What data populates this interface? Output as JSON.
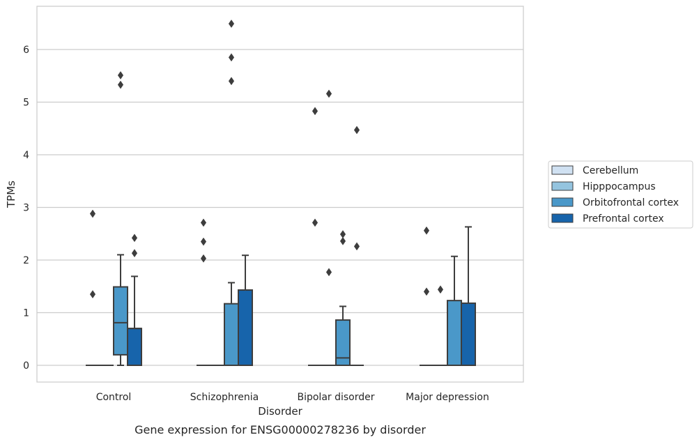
{
  "chart_data": {
    "type": "box",
    "title": "",
    "caption": "Gene expression for ENSG00000278236 by disorder",
    "xlabel": "Disorder",
    "ylabel": "TPMs",
    "ylim": [
      -0.32,
      6.85
    ],
    "yticks": [
      0,
      1,
      2,
      3,
      4,
      5,
      6
    ],
    "grid": "horizontal",
    "legend_position": "right",
    "categories": [
      "Control",
      "Schizophrenia",
      "Bipolar disorder",
      "Major depression"
    ],
    "series": [
      {
        "name": "Cerebellum",
        "color": "#d0e1f2",
        "boxes": [
          {
            "q1": 0,
            "median": 0,
            "q3": 0,
            "whislo": 0,
            "whishi": 0,
            "fliers": [
              1.35,
              2.88
            ]
          },
          {
            "q1": 0,
            "median": 0,
            "q3": 0,
            "whislo": 0,
            "whishi": 0,
            "fliers": [
              2.03,
              2.35,
              2.71
            ]
          },
          {
            "q1": 0,
            "median": 0,
            "q3": 0,
            "whislo": 0,
            "whishi": 0,
            "fliers": [
              2.71,
              4.83
            ]
          },
          {
            "q1": 0,
            "median": 0,
            "q3": 0,
            "whislo": 0,
            "whishi": 0,
            "fliers": [
              1.4,
              2.56
            ]
          }
        ]
      },
      {
        "name": "Hipppocampus",
        "color": "#94c4df",
        "boxes": [
          {
            "q1": 0,
            "median": 0,
            "q3": 0,
            "whislo": 0,
            "whishi": 0,
            "fliers": []
          },
          {
            "q1": 0,
            "median": 0,
            "q3": 0,
            "whislo": 0,
            "whishi": 0,
            "fliers": []
          },
          {
            "q1": 0,
            "median": 0,
            "q3": 0,
            "whislo": 0,
            "whishi": 0,
            "fliers": [
              1.77,
              5.16
            ]
          },
          {
            "q1": 0,
            "median": 0,
            "q3": 0,
            "whislo": 0,
            "whishi": 0,
            "fliers": [
              1.44
            ]
          }
        ]
      },
      {
        "name": "Orbitofrontal cortex",
        "color": "#4a98c9",
        "boxes": [
          {
            "q1": 0.2,
            "median": 0.81,
            "q3": 1.49,
            "whislo": 0,
            "whishi": 2.1,
            "fliers": [
              5.33,
              5.51
            ]
          },
          {
            "q1": 0,
            "median": 0,
            "q3": 1.17,
            "whislo": 0,
            "whishi": 1.57,
            "fliers": [
              5.4,
              5.85,
              6.49
            ]
          },
          {
            "q1": 0,
            "median": 0.14,
            "q3": 0.86,
            "whislo": 0,
            "whishi": 1.12,
            "fliers": [
              2.36,
              2.49
            ]
          },
          {
            "q1": 0,
            "median": 0,
            "q3": 1.23,
            "whislo": 0,
            "whishi": 2.07,
            "fliers": []
          }
        ]
      },
      {
        "name": "Prefrontal cortex",
        "color": "#1764ab",
        "boxes": [
          {
            "q1": 0,
            "median": 0.7,
            "q3": 0.7,
            "whislo": 0,
            "whishi": 1.69,
            "fliers": [
              2.13,
              2.42
            ]
          },
          {
            "q1": 0,
            "median": 1.43,
            "q3": 1.43,
            "whislo": 0,
            "whishi": 2.09,
            "fliers": []
          },
          {
            "q1": 0,
            "median": 0,
            "q3": 0,
            "whislo": 0,
            "whishi": 0,
            "fliers": [
              2.26,
              4.47
            ]
          },
          {
            "q1": 0,
            "median": 0,
            "q3": 1.18,
            "whislo": 0,
            "whishi": 2.63,
            "fliers": []
          }
        ]
      }
    ]
  }
}
